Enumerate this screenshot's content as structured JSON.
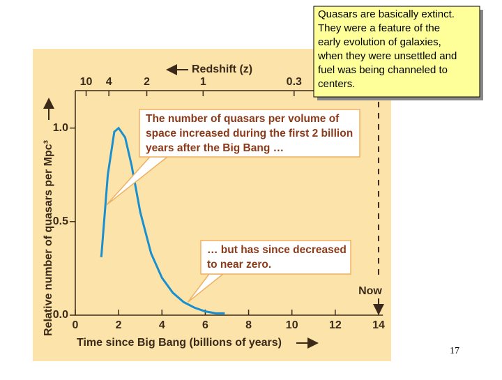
{
  "chart_data": {
    "type": "line",
    "x_label": "Time since Big Bang (billions of years)",
    "y_label": "Relative number of quasars per Mpc³",
    "x2_label": "Redshift (z)",
    "x": [
      1.2,
      1.5,
      1.8,
      2.0,
      2.3,
      2.6,
      3.0,
      3.5,
      4.0,
      4.5,
      5.0,
      5.5,
      6.0,
      6.5,
      6.9
    ],
    "series": [
      {
        "color": "#1a8fd0",
        "values": [
          0.31,
          0.75,
          0.98,
          1.0,
          0.95,
          0.8,
          0.55,
          0.33,
          0.2,
          0.12,
          0.07,
          0.04,
          0.02,
          0.01,
          0.01
        ]
      }
    ],
    "xlim": [
      0,
      14.2
    ],
    "ylim": [
      0,
      1.2
    ],
    "xticks": [
      0,
      2,
      4,
      6,
      8,
      10,
      12,
      14
    ],
    "yticks": [
      {
        "value": 0,
        "label": "0.0"
      },
      0.5,
      {
        "value": 1,
        "label": "1.0"
      }
    ],
    "x2ticks": [
      {
        "value": 0.5,
        "label": "10"
      },
      {
        "value": 1.55,
        "label": "4"
      },
      {
        "value": 3.3,
        "label": "2"
      },
      {
        "value": 5.9,
        "label": "1"
      },
      {
        "value": 10.1,
        "label": "0.3"
      }
    ],
    "now": {
      "x": 14,
      "label": "Now"
    },
    "annotations": [
      {
        "lines": [
          "The number of quasars per volume of",
          "space increased during the first 2 billion",
          "years after the Big Bang …"
        ],
        "x": 1.45,
        "y": 0.59
      },
      {
        "lines": [
          "… but has since decreased",
          "to near zero."
        ],
        "x": 5.2,
        "y": 0.07
      }
    ]
  },
  "note": [
    "Quasars are basically extinct.",
    "They were a feature of the",
    "early evolution of galaxies,",
    "when they were unsettled and",
    "fuel was being channeled to",
    "centers."
  ],
  "slide_number": "17"
}
